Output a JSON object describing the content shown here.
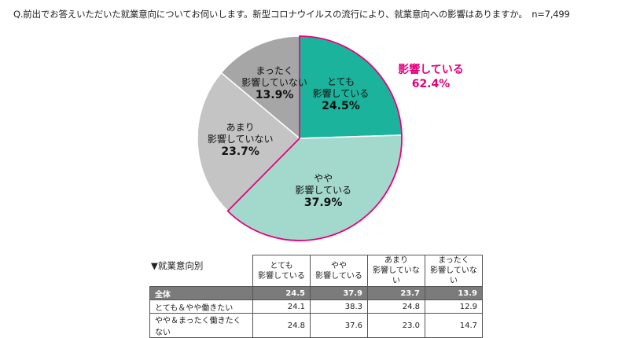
{
  "question": "Q.前出でお答えいただいた就業意向についてお伺いします。新型コロナウイルスの流行により、就業意向への影響はありますか。　n=7,499",
  "chart_data": {
    "type": "pie",
    "slices": [
      {
        "label_line1": "とても",
        "label_line2": "影響している",
        "value": 24.5,
        "pct": "24.5%",
        "color": "#1bb39c"
      },
      {
        "label_line1": "やや",
        "label_line2": "影響している",
        "value": 37.9,
        "pct": "37.9%",
        "color": "#a3d9cc"
      },
      {
        "label_line1": "あまり",
        "label_line2": "影響していない",
        "value": 23.7,
        "pct": "23.7%",
        "color": "#c4c4c4"
      },
      {
        "label_line1": "まったく",
        "label_line2": "影響していない",
        "value": 13.9,
        "pct": "13.9%",
        "color": "#a6a6a6"
      }
    ],
    "callout": {
      "label": "影響している",
      "value": "62.4%",
      "color": "#e6007e"
    }
  },
  "table": {
    "title": "▼就業意向別",
    "headers": [
      {
        "line1": "とても",
        "line2": "影響している"
      },
      {
        "line1": "やや",
        "line2": "影響している"
      },
      {
        "line1": "あまり",
        "line2": "影響していない"
      },
      {
        "line1": "まったく",
        "line2": "影響していない"
      }
    ],
    "rows": [
      {
        "label": "全体",
        "values": [
          "24.5",
          "37.9",
          "23.7",
          "13.9"
        ]
      },
      {
        "label": "とても＆やや働きたい",
        "values": [
          "24.1",
          "38.3",
          "24.8",
          "12.9"
        ]
      },
      {
        "label": "やや＆まったく働きたくない",
        "values": [
          "24.8",
          "37.6",
          "23.0",
          "14.7"
        ]
      }
    ]
  }
}
